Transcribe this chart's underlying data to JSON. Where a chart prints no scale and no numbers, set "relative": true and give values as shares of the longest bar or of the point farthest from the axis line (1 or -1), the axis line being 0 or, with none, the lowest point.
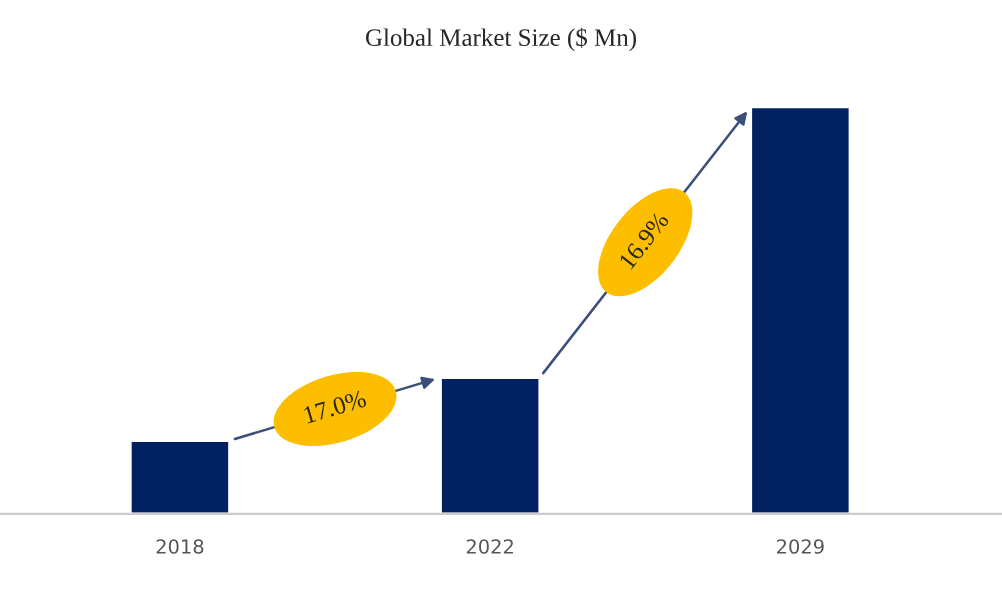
{
  "chart_data": {
    "type": "bar",
    "title": "Global Market Size ($ Mn)",
    "relative": true,
    "categories": [
      "2018",
      "2022",
      "2029"
    ],
    "values": [
      0.18,
      0.335,
      1
    ],
    "color": "#022160",
    "annotations": [
      "17.0%",
      "16.9%"
    ],
    "grid": false,
    "legend": false
  }
}
